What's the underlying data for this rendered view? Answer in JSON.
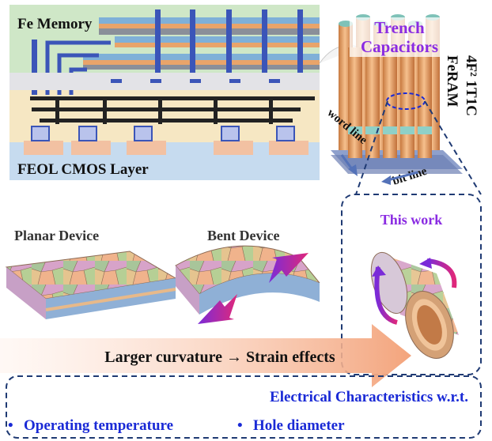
{
  "top_left": {
    "fe_memory_label": "Fe Memory",
    "feol_label": "FEOL CMOS Layer"
  },
  "top_right": {
    "trench_label_1": "Trench",
    "trench_label_2": "Capacitors",
    "cell_label_1": "4F² 1T1C",
    "cell_label_2": "FeRAM",
    "word_line": "word line",
    "bit_line": "bit line"
  },
  "middle": {
    "planar_label": "Planar Device",
    "bent_label": "Bent Device",
    "this_work_label": "This work",
    "arrow_text": "Larger curvature → Strain effects"
  },
  "bottom": {
    "title": "Electrical Characteristics w.r.t.",
    "item_1": "Operating temperature",
    "item_2": "Hole diameter"
  },
  "colors": {
    "accent_blue": "#1a2ad6",
    "accent_purple": "#8a2be2",
    "dashed_navy": "#1f3a73",
    "trench_orange": "#e8a26a",
    "arrow_peach": "#f4b896"
  }
}
